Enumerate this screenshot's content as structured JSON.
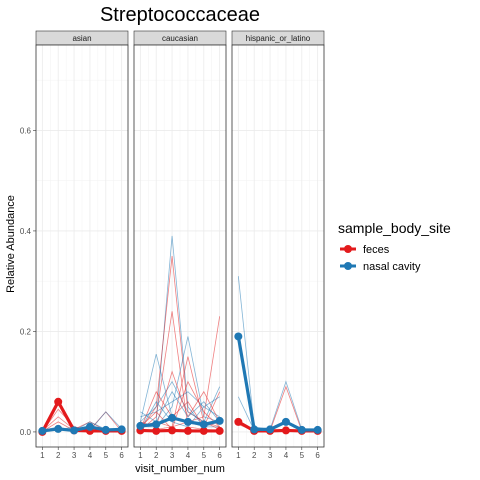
{
  "chart_data": {
    "type": "line",
    "title": "Streptococcaceae",
    "xlabel": "visit_number_num",
    "ylabel": "Relative Abundance",
    "x_ticks": [
      1,
      2,
      3,
      4,
      5,
      6
    ],
    "y_ticks": [
      0.0,
      0.2,
      0.4,
      0.6
    ],
    "y_tick_labels": [
      "0.0",
      "0.2",
      "0.4",
      "0.6"
    ],
    "xlim": [
      0.6,
      6.4
    ],
    "ylim": [
      -0.03,
      0.77
    ],
    "grid": true,
    "legend": {
      "title": "sample_body_site",
      "position": "right",
      "entries": [
        {
          "name": "feces",
          "color": "#e31a1c"
        },
        {
          "name": "nasal cavity",
          "color": "#1f78b4"
        }
      ]
    },
    "facets": [
      {
        "label": "asian",
        "mean_series": [
          {
            "name": "feces",
            "color": "#e31a1c",
            "x": [
              1,
              2,
              3,
              4,
              5,
              6
            ],
            "values": [
              0.0,
              0.06,
              0.003,
              0.002,
              0.002,
              0.002
            ]
          },
          {
            "name": "nasal cavity",
            "color": "#1f78b4",
            "x": [
              1,
              2,
              3,
              4,
              5,
              6
            ],
            "values": [
              0.002,
              0.006,
              0.003,
              0.01,
              0.004,
              0.005
            ]
          }
        ],
        "subject_lines": [
          {
            "group": "feces",
            "values": [
              0.0,
              0.045,
              0.01,
              0.005,
              0.002,
              0.001
            ]
          },
          {
            "group": "feces",
            "values": [
              0.002,
              0.03,
              0.005,
              0.02,
              0.003,
              0.002
            ]
          },
          {
            "group": "feces",
            "values": [
              0.001,
              0.02,
              0.003,
              0.004,
              0.04,
              0.001
            ]
          },
          {
            "group": "nasal cavity",
            "values": [
              0.003,
              0.01,
              0.002,
              0.02,
              0.005,
              0.003
            ]
          },
          {
            "group": "nasal cavity",
            "values": [
              0.002,
              0.004,
              0.01,
              0.003,
              0.04,
              0.006
            ]
          }
        ]
      },
      {
        "label": "caucasian",
        "mean_series": [
          {
            "name": "feces",
            "color": "#e31a1c",
            "x": [
              1,
              2,
              3,
              4,
              5,
              6
            ],
            "values": [
              0.003,
              0.002,
              0.003,
              0.002,
              0.002,
              0.002
            ]
          },
          {
            "name": "nasal cavity",
            "color": "#1f78b4",
            "x": [
              1,
              2,
              3,
              4,
              5,
              6
            ],
            "values": [
              0.012,
              0.015,
              0.028,
              0.02,
              0.015,
              0.022
            ]
          }
        ],
        "subject_lines": [
          {
            "group": "nasal cavity",
            "values": [
              0.01,
              0.02,
              0.39,
              0.05,
              0.01,
              0.02
            ]
          },
          {
            "group": "feces",
            "values": [
              0.005,
              0.05,
              0.35,
              0.04,
              0.02,
              0.01
            ]
          },
          {
            "group": "nasal cavity",
            "values": [
              0.02,
              0.155,
              0.03,
              0.02,
              0.01,
              0.01
            ]
          },
          {
            "group": "feces",
            "values": [
              0.003,
              0.03,
              0.24,
              0.01,
              0.005,
              0.003
            ]
          },
          {
            "group": "nasal cavity",
            "values": [
              0.01,
              0.01,
              0.05,
              0.19,
              0.03,
              0.02
            ]
          },
          {
            "group": "feces",
            "values": [
              0.01,
              0.02,
              0.01,
              0.15,
              0.02,
              0.005
            ]
          },
          {
            "group": "feces",
            "values": [
              0.002,
              0.005,
              0.01,
              0.02,
              0.03,
              0.23
            ]
          },
          {
            "group": "nasal cavity",
            "values": [
              0.02,
              0.05,
              0.1,
              0.04,
              0.02,
              0.09
            ]
          },
          {
            "group": "feces",
            "values": [
              0.005,
              0.08,
              0.03,
              0.06,
              0.01,
              0.08
            ]
          },
          {
            "group": "nasal cavity",
            "values": [
              0.03,
              0.04,
              0.06,
              0.08,
              0.05,
              0.03
            ]
          },
          {
            "group": "feces",
            "values": [
              0.02,
              0.01,
              0.12,
              0.03,
              0.08,
              0.02
            ]
          },
          {
            "group": "nasal cavity",
            "values": [
              0.005,
              0.06,
              0.02,
              0.01,
              0.05,
              0.07
            ]
          },
          {
            "group": "feces",
            "values": [
              0.01,
              0.04,
              0.005,
              0.1,
              0.04,
              0.01
            ]
          },
          {
            "group": "nasal cavity",
            "values": [
              0.04,
              0.02,
              0.08,
              0.03,
              0.06,
              0.02
            ]
          }
        ]
      },
      {
        "label": "hispanic_or_latino",
        "mean_series": [
          {
            "name": "feces",
            "color": "#e31a1c",
            "x": [
              1,
              2,
              3,
              4,
              5,
              6
            ],
            "values": [
              0.02,
              0.002,
              0.002,
              0.003,
              0.002,
              0.002
            ]
          },
          {
            "name": "nasal cavity",
            "color": "#1f78b4",
            "x": [
              1,
              2,
              3,
              4,
              5,
              6
            ],
            "values": [
              0.19,
              0.005,
              0.005,
              0.02,
              0.004,
              0.004
            ]
          }
        ],
        "subject_lines": [
          {
            "group": "nasal cavity",
            "values": [
              0.31,
              0.01,
              0.005,
              0.02,
              0.005,
              0.005
            ]
          },
          {
            "group": "nasal cavity",
            "values": [
              0.07,
              0.003,
              0.005,
              0.1,
              0.005,
              0.003
            ]
          },
          {
            "group": "feces",
            "values": [
              0.02,
              0.003,
              0.002,
              0.09,
              0.002,
              0.002
            ]
          },
          {
            "group": "feces",
            "values": [
              0.015,
              0.002,
              0.003,
              0.005,
              0.002,
              0.002
            ]
          }
        ]
      }
    ]
  }
}
